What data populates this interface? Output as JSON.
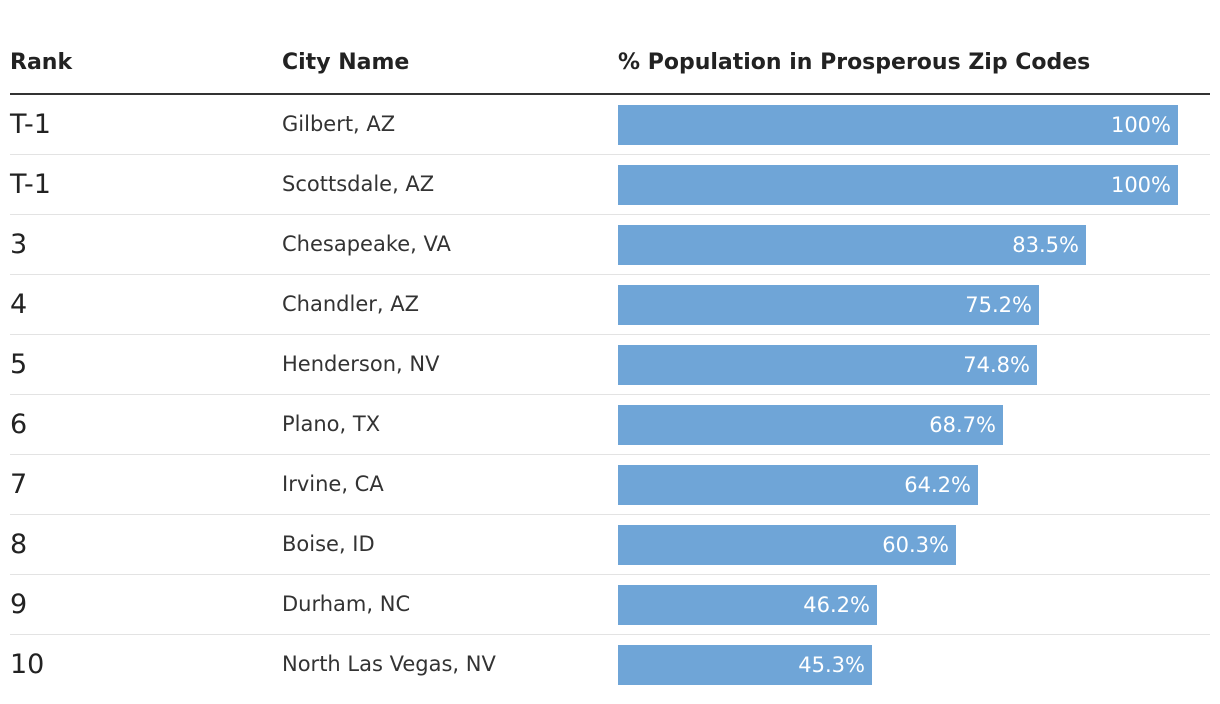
{
  "chart_data": {
    "type": "table",
    "columns": [
      "Rank",
      "City Name",
      "% Population in Prosperous Zip Codes"
    ],
    "bar_color": "#6fa5d7",
    "value_max": 100,
    "rows": [
      {
        "rank": "T-1",
        "city": "Gilbert, AZ",
        "value": 100,
        "label": "100%"
      },
      {
        "rank": "T-1",
        "city": "Scottsdale, AZ",
        "value": 100,
        "label": "100%"
      },
      {
        "rank": "3",
        "city": "Chesapeake, VA",
        "value": 83.5,
        "label": "83.5%"
      },
      {
        "rank": "4",
        "city": "Chandler, AZ",
        "value": 75.2,
        "label": "75.2%"
      },
      {
        "rank": "5",
        "city": "Henderson, NV",
        "value": 74.8,
        "label": "74.8%"
      },
      {
        "rank": "6",
        "city": "Plano, TX",
        "value": 68.7,
        "label": "68.7%"
      },
      {
        "rank": "7",
        "city": "Irvine, CA",
        "value": 64.2,
        "label": "64.2%"
      },
      {
        "rank": "8",
        "city": "Boise, ID",
        "value": 60.3,
        "label": "60.3%"
      },
      {
        "rank": "9",
        "city": "Durham, NC",
        "value": 46.2,
        "label": "46.2%"
      },
      {
        "rank": "10",
        "city": "North Las Vegas, NV",
        "value": 45.3,
        "label": "45.3%"
      }
    ]
  }
}
